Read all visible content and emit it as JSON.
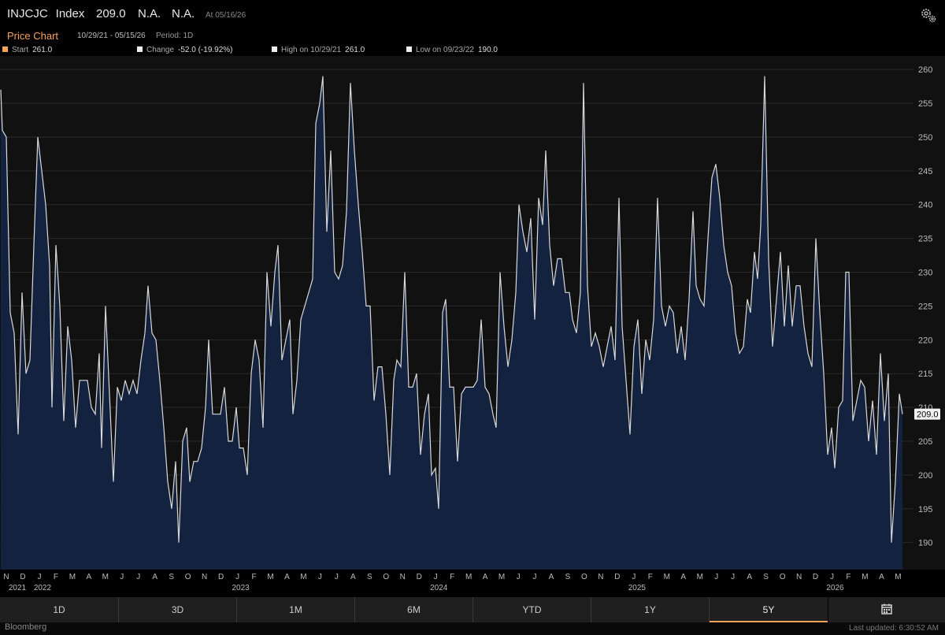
{
  "header": {
    "ticker": "INJCJC",
    "type": "Index",
    "price": "209.0",
    "na1": "N.A.",
    "na2": "N.A.",
    "asof": "At 05/16/26"
  },
  "subheader": {
    "title": "Price Chart",
    "range": "10/29/21 - 05/15/26",
    "period": "Period: 1D"
  },
  "stats": {
    "start_label": "Start",
    "start_value": "261.0",
    "change_label": "Change",
    "change_value": "-52.0 (-19.92%)",
    "high_label": "High on 10/29/21",
    "high_value": "261.0",
    "low_label": "Low on 09/23/22",
    "low_value": "190.0"
  },
  "colors": {
    "accent": "#f6a35c",
    "area": "#13223f",
    "line": "#d9d9d9"
  },
  "chart_data": {
    "type": "area",
    "ylim": [
      186,
      262
    ],
    "y_ticks": [
      190,
      195,
      200,
      205,
      210,
      215,
      220,
      225,
      230,
      235,
      240,
      245,
      250,
      255,
      260
    ],
    "last_value_label": "209.0",
    "x_month_labels": [
      "N",
      "D",
      "J",
      "F",
      "M",
      "A",
      "M",
      "J",
      "J",
      "A",
      "S",
      "O",
      "N",
      "D",
      "J",
      "F",
      "M",
      "A",
      "M",
      "J",
      "J",
      "A",
      "S",
      "O",
      "N",
      "D",
      "J",
      "F",
      "M",
      "A",
      "M",
      "J",
      "J",
      "A",
      "S",
      "O",
      "N",
      "D",
      "J",
      "F",
      "M",
      "A",
      "M",
      "J",
      "J",
      "A",
      "S",
      "O",
      "N",
      "D",
      "J",
      "F",
      "M",
      "A",
      "M"
    ],
    "x_year_labels": [
      "2021",
      "2022",
      "2023",
      "2024",
      "2025",
      "2026"
    ],
    "x_start": "2021-10-29",
    "x_end": "2026-05-15",
    "series": [
      {
        "values": [
          [
            1,
            257
          ],
          [
            3,
            251
          ],
          [
            8,
            250
          ],
          [
            13,
            224
          ],
          [
            18,
            221
          ],
          [
            23,
            206
          ],
          [
            28,
            227
          ],
          [
            33,
            215
          ],
          [
            38,
            217
          ],
          [
            43,
            234
          ],
          [
            48,
            250
          ],
          [
            53,
            245
          ],
          [
            58,
            240
          ],
          [
            63,
            231
          ],
          [
            66,
            210
          ],
          [
            71,
            234
          ],
          [
            76,
            225
          ],
          [
            81,
            208
          ],
          [
            86,
            222
          ],
          [
            91,
            217
          ],
          [
            96,
            207
          ],
          [
            101,
            214
          ],
          [
            106,
            214
          ],
          [
            111,
            214
          ],
          [
            116,
            210
          ],
          [
            121,
            209
          ],
          [
            126,
            218
          ],
          [
            129,
            204
          ],
          [
            134,
            225
          ],
          [
            139,
            212
          ],
          [
            144,
            199
          ],
          [
            149,
            213
          ],
          [
            154,
            211
          ],
          [
            159,
            214
          ],
          [
            164,
            212
          ],
          [
            169,
            214
          ],
          [
            174,
            212
          ],
          [
            179,
            217
          ],
          [
            184,
            221
          ],
          [
            188,
            228
          ],
          [
            193,
            221
          ],
          [
            198,
            220
          ],
          [
            203,
            214
          ],
          [
            208,
            207
          ],
          [
            213,
            199
          ],
          [
            218,
            195
          ],
          [
            223,
            202
          ],
          [
            227,
            190
          ],
          [
            232,
            205
          ],
          [
            237,
            207
          ],
          [
            241,
            199
          ],
          [
            246,
            202
          ],
          [
            251,
            202
          ],
          [
            256,
            204
          ],
          [
            261,
            210
          ],
          [
            265,
            220
          ],
          [
            270,
            209
          ],
          [
            275,
            209
          ],
          [
            280,
            209
          ],
          [
            285,
            213
          ],
          [
            290,
            205
          ],
          [
            295,
            205
          ],
          [
            300,
            210
          ],
          [
            304,
            204
          ],
          [
            309,
            204
          ],
          [
            314,
            200
          ],
          [
            319,
            215
          ],
          [
            324,
            220
          ],
          [
            329,
            217
          ],
          [
            334,
            207
          ],
          [
            339,
            230
          ],
          [
            344,
            222
          ],
          [
            349,
            230
          ],
          [
            353,
            234
          ],
          [
            358,
            217
          ],
          [
            363,
            220
          ],
          [
            368,
            223
          ],
          [
            372,
            209
          ],
          [
            377,
            214
          ],
          [
            382,
            223
          ],
          [
            387,
            225
          ],
          [
            392,
            227
          ],
          [
            397,
            229
          ],
          [
            401,
            252
          ],
          [
            406,
            255
          ],
          [
            410,
            259
          ],
          [
            415,
            236
          ],
          [
            420,
            248
          ],
          [
            425,
            230
          ],
          [
            430,
            229
          ],
          [
            435,
            231
          ],
          [
            440,
            239
          ],
          [
            445,
            258
          ],
          [
            450,
            248
          ],
          [
            455,
            240
          ],
          [
            460,
            233
          ],
          [
            465,
            225
          ],
          [
            470,
            225
          ],
          [
            475,
            211
          ],
          [
            480,
            216
          ],
          [
            485,
            216
          ],
          [
            490,
            209
          ],
          [
            495,
            200
          ],
          [
            500,
            214
          ],
          [
            504,
            217
          ],
          [
            509,
            216
          ],
          [
            514,
            230
          ],
          [
            519,
            213
          ],
          [
            524,
            213
          ],
          [
            529,
            215
          ],
          [
            534,
            203
          ],
          [
            539,
            209
          ],
          [
            544,
            212
          ],
          [
            548,
            200
          ],
          [
            553,
            201
          ],
          [
            557,
            195
          ],
          [
            562,
            224
          ],
          [
            566,
            226
          ],
          [
            571,
            213
          ],
          [
            576,
            213
          ],
          [
            581,
            202
          ],
          [
            586,
            212
          ],
          [
            591,
            213
          ],
          [
            596,
            213
          ],
          [
            601,
            213
          ],
          [
            606,
            214
          ],
          [
            611,
            223
          ],
          [
            616,
            213
          ],
          [
            621,
            212
          ],
          [
            626,
            209
          ],
          [
            630,
            207
          ],
          [
            635,
            230
          ],
          [
            640,
            222
          ],
          [
            645,
            216
          ],
          [
            650,
            220
          ],
          [
            655,
            227
          ],
          [
            659,
            240
          ],
          [
            664,
            236
          ],
          [
            669,
            233
          ],
          [
            674,
            238
          ],
          [
            679,
            223
          ],
          [
            684,
            241
          ],
          [
            689,
            237
          ],
          [
            693,
            248
          ],
          [
            698,
            234
          ],
          [
            703,
            228
          ],
          [
            708,
            232
          ],
          [
            713,
            232
          ],
          [
            718,
            227
          ],
          [
            723,
            227
          ],
          [
            727,
            223
          ],
          [
            732,
            221
          ],
          [
            737,
            227
          ],
          [
            741,
            258
          ],
          [
            746,
            228
          ],
          [
            751,
            219
          ],
          [
            756,
            221
          ],
          [
            761,
            219
          ],
          [
            766,
            216
          ],
          [
            771,
            219
          ],
          [
            776,
            222
          ],
          [
            781,
            217
          ],
          [
            786,
            241
          ],
          [
            790,
            222
          ],
          [
            795,
            214
          ],
          [
            800,
            206
          ],
          [
            805,
            219
          ],
          [
            810,
            223
          ],
          [
            815,
            212
          ],
          [
            820,
            220
          ],
          [
            825,
            217
          ],
          [
            830,
            223
          ],
          [
            835,
            241
          ],
          [
            840,
            225
          ],
          [
            845,
            222
          ],
          [
            850,
            225
          ],
          [
            855,
            224
          ],
          [
            860,
            218
          ],
          [
            865,
            222
          ],
          [
            870,
            217
          ],
          [
            875,
            226
          ],
          [
            880,
            239
          ],
          [
            884,
            228
          ],
          [
            889,
            226
          ],
          [
            894,
            225
          ],
          [
            899,
            235
          ],
          [
            904,
            244
          ],
          [
            909,
            246
          ],
          [
            914,
            241
          ],
          [
            919,
            234
          ],
          [
            924,
            230
          ],
          [
            929,
            228
          ],
          [
            934,
            221
          ],
          [
            939,
            218
          ],
          [
            944,
            219
          ],
          [
            949,
            226
          ],
          [
            953,
            224
          ],
          [
            958,
            233
          ],
          [
            962,
            229
          ],
          [
            966,
            237
          ],
          [
            971,
            259
          ],
          [
            976,
            232
          ],
          [
            981,
            219
          ],
          [
            986,
            226
          ],
          [
            991,
            233
          ],
          [
            996,
            222
          ],
          [
            1001,
            231
          ],
          [
            1006,
            222
          ],
          [
            1011,
            228
          ],
          [
            1016,
            228
          ],
          [
            1021,
            222
          ],
          [
            1026,
            218
          ],
          [
            1031,
            216
          ],
          [
            1036,
            235
          ],
          [
            1041,
            224
          ],
          [
            1046,
            215
          ],
          [
            1051,
            203
          ],
          [
            1056,
            207
          ],
          [
            1060,
            201
          ],
          [
            1065,
            210
          ],
          [
            1070,
            211
          ],
          [
            1074,
            230
          ],
          [
            1078,
            230
          ],
          [
            1083,
            208
          ],
          [
            1088,
            211
          ],
          [
            1093,
            214
          ],
          [
            1098,
            213
          ],
          [
            1103,
            205
          ],
          [
            1108,
            211
          ],
          [
            1113,
            203
          ],
          [
            1118,
            218
          ],
          [
            1123,
            208
          ],
          [
            1128,
            215
          ],
          [
            1132,
            190
          ],
          [
            1137,
            199
          ],
          [
            1142,
            212
          ],
          [
            1146,
            209
          ]
        ]
      }
    ]
  },
  "footer": {
    "buttons": [
      "1D",
      "3D",
      "1M",
      "6M",
      "YTD",
      "1Y",
      "5Y"
    ],
    "active": "5Y",
    "brand": "Bloomberg",
    "updated": "Last updated: 6:30:52 AM"
  }
}
